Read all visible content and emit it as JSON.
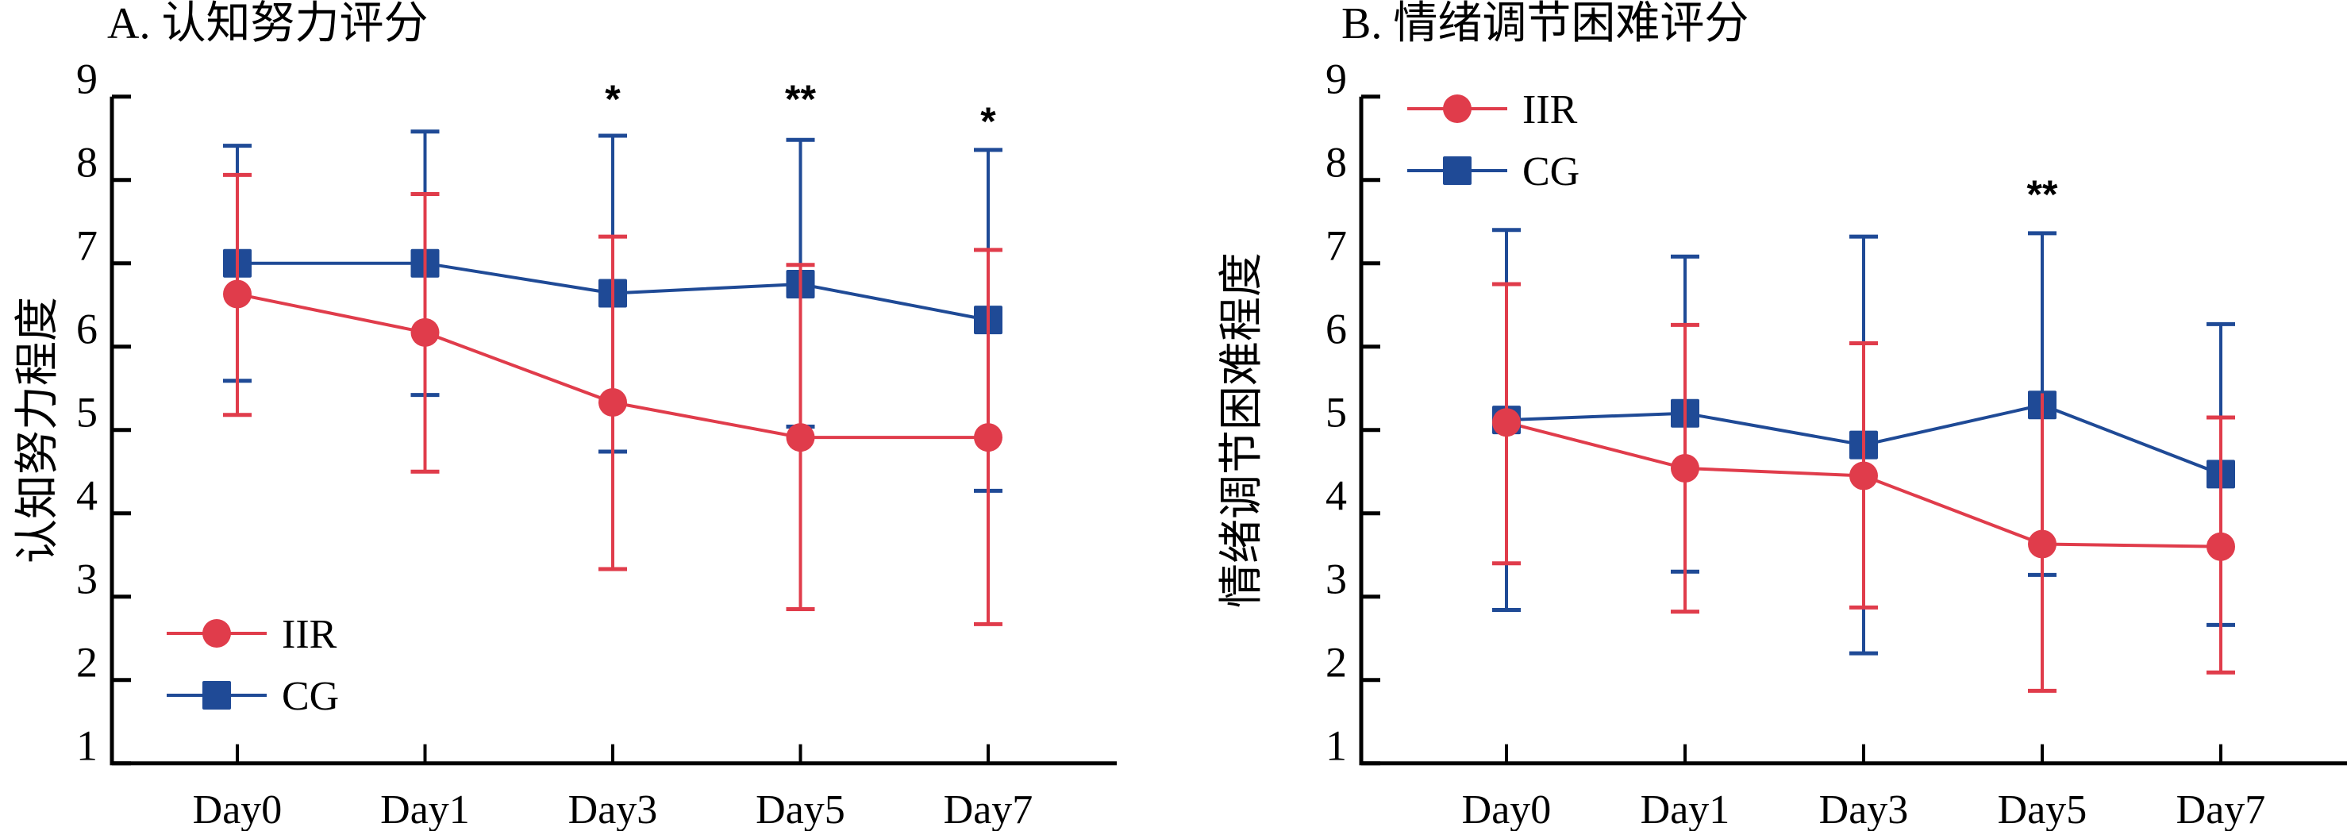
{
  "colors": {
    "IIR": "#E03C4B",
    "CG": "#1F4A96",
    "axis": "#000000"
  },
  "chart_data": [
    {
      "type": "line",
      "panel": "A",
      "title": "A. 认知努力评分",
      "xlabel": "",
      "ylabel": "认知努力程度",
      "ylim": [
        1,
        9
      ],
      "yticks": [
        1,
        2,
        3,
        4,
        5,
        6,
        7,
        8,
        9
      ],
      "grid": false,
      "legend_position": "bottom-left",
      "categories": [
        "Day0",
        "Day1",
        "Day3",
        "Day5",
        "Day7"
      ],
      "series": [
        {
          "name": "IIR",
          "marker": "circle",
          "color": "#E03C4B",
          "values": [
            6.63,
            6.17,
            5.33,
            4.91,
            4.91
          ],
          "err_upper": [
            8.06,
            7.83,
            7.32,
            6.98,
            7.16
          ],
          "err_lower": [
            5.18,
            4.5,
            3.33,
            2.85,
            2.67
          ]
        },
        {
          "name": "CG",
          "marker": "square",
          "color": "#1F4A96",
          "values": [
            7.0,
            7.0,
            6.64,
            6.75,
            6.32
          ],
          "err_upper": [
            8.41,
            8.58,
            8.53,
            8.48,
            8.36
          ],
          "err_lower": [
            5.59,
            5.42,
            4.74,
            5.04,
            4.27
          ]
        }
      ],
      "annotations": [
        "",
        "",
        "*",
        "**",
        "*"
      ]
    },
    {
      "type": "line",
      "panel": "B",
      "title": "B. 情绪调节困难评分",
      "xlabel": "",
      "ylabel": "情绪调节困难程度",
      "ylim": [
        1,
        9
      ],
      "yticks": [
        1,
        2,
        3,
        4,
        5,
        6,
        7,
        8,
        9
      ],
      "grid": false,
      "legend_position": "top-left",
      "categories": [
        "Day0",
        "Day1",
        "Day3",
        "Day5",
        "Day7"
      ],
      "series": [
        {
          "name": "IIR",
          "marker": "circle",
          "color": "#E03C4B",
          "values": [
            5.09,
            4.54,
            4.45,
            3.63,
            3.6
          ],
          "err_upper": [
            6.75,
            6.26,
            6.04,
            5.44,
            5.15
          ],
          "err_lower": [
            3.4,
            2.82,
            2.87,
            1.87,
            2.09
          ]
        },
        {
          "name": "CG",
          "marker": "square",
          "color": "#1F4A96",
          "values": [
            5.12,
            5.2,
            4.82,
            5.3,
            4.47
          ],
          "err_upper": [
            7.4,
            7.08,
            7.32,
            7.36,
            6.27
          ],
          "err_lower": [
            2.84,
            3.3,
            2.32,
            3.26,
            2.66
          ]
        }
      ],
      "annotations": [
        "",
        "",
        "",
        "**",
        ""
      ]
    }
  ]
}
